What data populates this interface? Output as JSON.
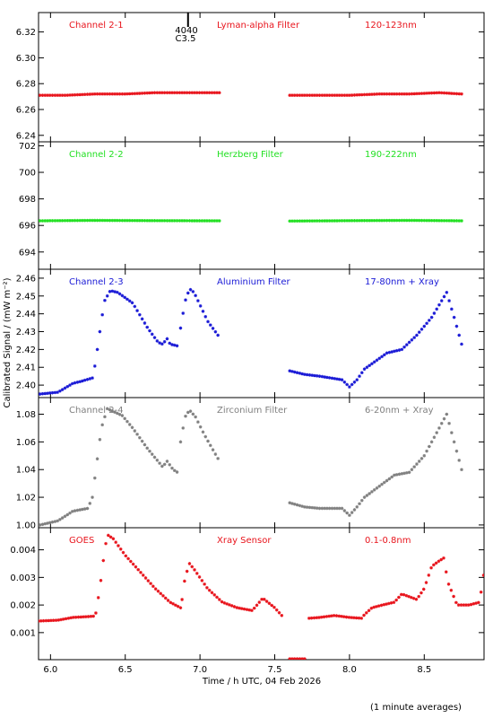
{
  "figure": {
    "ylabel": "Calibrated Signal / (mW m⁻²)",
    "xlabel": "Time / h UTC, 04 Feb 2026",
    "footnote": "(1 minute averages)",
    "event_marker": {
      "x": 6.92,
      "labels": [
        "4040",
        "C3.5"
      ]
    },
    "x_range": [
      5.92,
      8.9
    ],
    "x_ticks": [
      6.0,
      6.5,
      7.0,
      7.5,
      8.0,
      8.5
    ],
    "x_tick_labels": [
      "6.0",
      "6.5",
      "7.0",
      "7.5",
      "8.0",
      "8.5"
    ]
  },
  "chart_data": [
    {
      "type": "scatter",
      "name": "Channel 2-1",
      "filter": "Lyman-alpha Filter",
      "band": "120-123nm",
      "color": "#e8141c",
      "ylim": [
        6.235,
        6.335
      ],
      "yticks": [
        6.24,
        6.26,
        6.28,
        6.3,
        6.32
      ],
      "ytick_labels": [
        "6.24",
        "6.26",
        "6.28",
        "6.30",
        "6.32"
      ],
      "segments": [
        {
          "x": [
            5.93,
            6.1,
            6.3,
            6.5,
            6.7,
            6.9,
            7.13
          ],
          "y": [
            6.271,
            6.271,
            6.272,
            6.272,
            6.273,
            6.273,
            6.273
          ]
        },
        {
          "x": [
            7.6,
            7.8,
            8.0,
            8.2,
            8.4,
            8.6,
            8.75
          ],
          "y": [
            6.271,
            6.271,
            6.271,
            6.272,
            6.272,
            6.273,
            6.272
          ]
        }
      ]
    },
    {
      "type": "scatter",
      "name": "Channel 2-2",
      "filter": "Herzberg Filter",
      "band": "190-222nm",
      "color": "#22e022",
      "ylim": [
        692.7,
        702.3
      ],
      "yticks": [
        694,
        696,
        698,
        700,
        702
      ],
      "ytick_labels": [
        "694",
        "696",
        "698",
        "700",
        "702"
      ],
      "segments": [
        {
          "x": [
            5.93,
            6.3,
            6.7,
            7.13
          ],
          "y": [
            696.35,
            696.38,
            696.36,
            696.35
          ]
        },
        {
          "x": [
            7.6,
            8.0,
            8.4,
            8.75
          ],
          "y": [
            696.33,
            696.36,
            696.38,
            696.35
          ]
        }
      ]
    },
    {
      "type": "scatter",
      "name": "Channel 2-3",
      "filter": "Aluminium Filter",
      "band": "17-80nm + Xray",
      "color": "#1a1ad6",
      "ylim": [
        2.393,
        2.465
      ],
      "yticks": [
        2.4,
        2.41,
        2.42,
        2.43,
        2.44,
        2.45,
        2.46
      ],
      "ytick_labels": [
        "2.40",
        "2.41",
        "2.42",
        "2.43",
        "2.44",
        "2.45",
        "2.46"
      ],
      "segments": [
        {
          "x": [
            5.93,
            6.05,
            6.15,
            6.2,
            6.28,
            6.3,
            6.33,
            6.36,
            6.4,
            6.45,
            6.55,
            6.65,
            6.72,
            6.75,
            6.78,
            6.8,
            6.85
          ],
          "y": [
            2.395,
            2.396,
            2.401,
            2.402,
            2.404,
            2.412,
            2.43,
            2.447,
            2.453,
            2.452,
            2.446,
            2.432,
            2.424,
            2.423,
            2.426,
            2.423,
            2.422
          ]
        },
        {
          "x": [
            6.87,
            6.9,
            6.93,
            6.96,
            7.0,
            7.05,
            7.12
          ],
          "y": [
            2.432,
            2.447,
            2.454,
            2.452,
            2.445,
            2.436,
            2.428
          ]
        },
        {
          "x": [
            7.6,
            7.7,
            7.8,
            7.95,
            8.0,
            8.05,
            8.1,
            8.15,
            8.25,
            8.35,
            8.45,
            8.55,
            8.6,
            8.65,
            8.7,
            8.75
          ],
          "y": [
            2.408,
            2.406,
            2.405,
            2.403,
            2.399,
            2.403,
            2.409,
            2.412,
            2.418,
            2.42,
            2.428,
            2.438,
            2.445,
            2.452,
            2.438,
            2.423
          ]
        }
      ]
    },
    {
      "type": "scatter",
      "name": "Channel 2-4",
      "filter": "Zirconium Filter",
      "band": "6-20nm + Xray",
      "color": "#808080",
      "ylim": [
        0.998,
        1.092
      ],
      "yticks": [
        1.0,
        1.02,
        1.04,
        1.06,
        1.08
      ],
      "ytick_labels": [
        "1.00",
        "1.02",
        "1.04",
        "1.06",
        "1.08"
      ],
      "segments": [
        {
          "x": [
            5.93,
            6.05,
            6.15,
            6.25,
            6.28,
            6.31,
            6.34,
            6.38,
            6.42,
            6.48,
            6.55,
            6.65,
            6.75,
            6.78,
            6.82,
            6.85
          ],
          "y": [
            1.0,
            1.003,
            1.01,
            1.012,
            1.02,
            1.045,
            1.07,
            1.084,
            1.082,
            1.079,
            1.07,
            1.055,
            1.042,
            1.046,
            1.04,
            1.038
          ]
        },
        {
          "x": [
            6.87,
            6.9,
            6.93,
            6.97,
            7.03,
            7.12
          ],
          "y": [
            1.06,
            1.078,
            1.083,
            1.078,
            1.065,
            1.048
          ]
        },
        {
          "x": [
            7.6,
            7.7,
            7.8,
            7.95,
            8.0,
            8.05,
            8.1,
            8.2,
            8.3,
            8.4,
            8.5,
            8.6,
            8.65,
            8.7,
            8.75
          ],
          "y": [
            1.016,
            1.013,
            1.012,
            1.012,
            1.007,
            1.013,
            1.02,
            1.028,
            1.036,
            1.038,
            1.05,
            1.07,
            1.08,
            1.06,
            1.04
          ]
        }
      ]
    },
    {
      "type": "scatter",
      "name": "GOES",
      "filter": "Xray Sensor",
      "band": "0.1-0.8nm",
      "color": "#e8141c",
      "ylim": [
        2e-05,
        0.0048
      ],
      "yticks": [
        0.001,
        0.002,
        0.003,
        0.004
      ],
      "ytick_labels": [
        "0.001",
        "0.002",
        "0.003",
        "0.004"
      ],
      "segments": [
        {
          "x": [
            5.92,
            6.05,
            6.15,
            6.25,
            6.3,
            6.33,
            6.36,
            6.38,
            6.42,
            6.5,
            6.6,
            6.7,
            6.8,
            6.87
          ],
          "y": [
            0.00142,
            0.00145,
            0.00155,
            0.00158,
            0.0016,
            0.0026,
            0.0039,
            0.00455,
            0.0044,
            0.0038,
            0.0032,
            0.0026,
            0.0021,
            0.0019
          ]
        },
        {
          "x": [
            6.88,
            6.9,
            6.93,
            6.96,
            7.05,
            7.15,
            7.25,
            7.35,
            7.42,
            7.5,
            7.55
          ],
          "y": [
            0.0022,
            0.003,
            0.0035,
            0.0033,
            0.0026,
            0.0021,
            0.0019,
            0.0018,
            0.00225,
            0.0019,
            0.0016
          ]
        },
        {
          "x": [
            7.6,
            7.7
          ],
          "y": [
            5e-05,
            5e-05
          ]
        },
        {
          "x": [
            7.73,
            7.8,
            7.9,
            8.0,
            8.08,
            8.1,
            8.15,
            8.22,
            8.3,
            8.35,
            8.45,
            8.5,
            8.55,
            8.6,
            8.63,
            8.66,
            8.72,
            8.8,
            8.87,
            8.9
          ],
          "y": [
            0.00152,
            0.00155,
            0.00162,
            0.00155,
            0.00152,
            0.00165,
            0.0019,
            0.002,
            0.0021,
            0.0024,
            0.0022,
            0.0026,
            0.0034,
            0.0036,
            0.0037,
            0.0028,
            0.002,
            0.002,
            0.0021,
            0.0032
          ]
        }
      ]
    }
  ]
}
